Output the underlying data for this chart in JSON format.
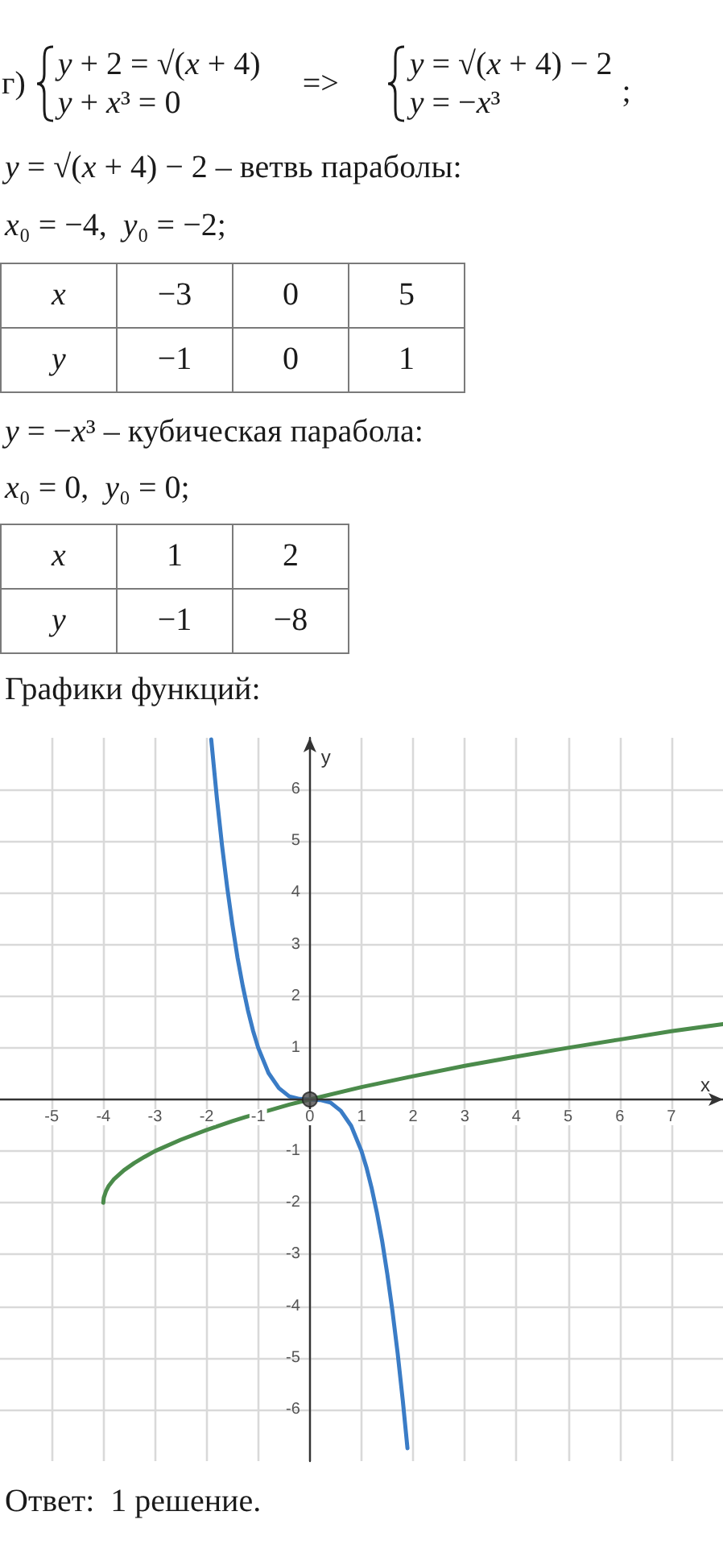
{
  "chart_data": {
    "type": "line",
    "title": "Графики функций:",
    "xlabel": "x",
    "ylabel": "y",
    "annotations": [
      "г)",
      "y + 2 = √(x + 4)",
      "y + x³ = 0",
      "=>",
      "y = √(x + 4) − 2",
      "y = −x³",
      ";",
      "y = √(x + 4) − 2 – ветвь параболы:",
      "x₀ = −4,  y₀ = −2;",
      "x",
      "−3",
      "0",
      "5",
      "y",
      "−1",
      "0",
      "1",
      "y = −x³ – кубическая парабола:",
      "x₀ = 0,  y₀ = 0;",
      "x",
      "1",
      "2",
      "y",
      "−1",
      "−8",
      "Ответ:  1 решение."
    ],
    "xlim": [
      -6,
      8
    ],
    "ylim": [
      -7,
      7
    ],
    "xticks": [
      -5,
      -4,
      -3,
      -2,
      -1,
      0,
      1,
      2,
      3,
      4,
      5,
      6,
      7
    ],
    "yticks": [
      -6,
      -5,
      -4,
      -3,
      -2,
      -1,
      1,
      2,
      3,
      4,
      5,
      6
    ],
    "grid": true,
    "marker": "none",
    "line_style": "solid",
    "series": [
      {
        "color": "#3a7cc6",
        "x": [
          -1.91,
          -1.8,
          -1.7,
          -1.6,
          -1.5,
          -1.4,
          -1.3,
          -1.2,
          -1.1,
          -1,
          -0.8,
          -0.6,
          -0.4,
          -0.2,
          0,
          0.2,
          0.4,
          0.6,
          0.8,
          1,
          1.1,
          1.2,
          1.3,
          1.4,
          1.5,
          1.6,
          1.7,
          1.8,
          1.89
        ],
        "values": [
          6.97,
          5.83,
          4.91,
          4.1,
          3.38,
          2.74,
          2.2,
          1.73,
          1.33,
          1,
          0.51,
          0.22,
          0.06,
          0.01,
          0,
          -0.01,
          -0.06,
          -0.22,
          -0.51,
          -1,
          -1.33,
          -1.73,
          -2.2,
          -2.74,
          -3.38,
          -4.1,
          -4.91,
          -5.83,
          -6.75
        ]
      },
      {
        "color": "#4b8b4b",
        "x": [
          -4,
          -3.99,
          -3.95,
          -3.9,
          -3.8,
          -3.6,
          -3.4,
          -3.2,
          -3,
          -2.5,
          -2,
          -1.5,
          -1.25,
          -0.75,
          -0.4,
          0,
          1,
          2,
          3,
          4,
          5,
          6,
          7,
          8
        ],
        "values": [
          -2,
          -1.9,
          -1.78,
          -1.68,
          -1.55,
          -1.37,
          -1.23,
          -1.11,
          -1,
          -0.78,
          -0.59,
          -0.42,
          -0.34,
          -0.2,
          -0.1,
          0,
          0.24,
          0.45,
          0.65,
          0.83,
          1,
          1.16,
          1.32,
          1.46
        ]
      },
      {
        "type": "scatter",
        "marker": "circle",
        "color": "#4d4d4d",
        "x": [
          0
        ],
        "values": [
          0
        ]
      }
    ]
  }
}
